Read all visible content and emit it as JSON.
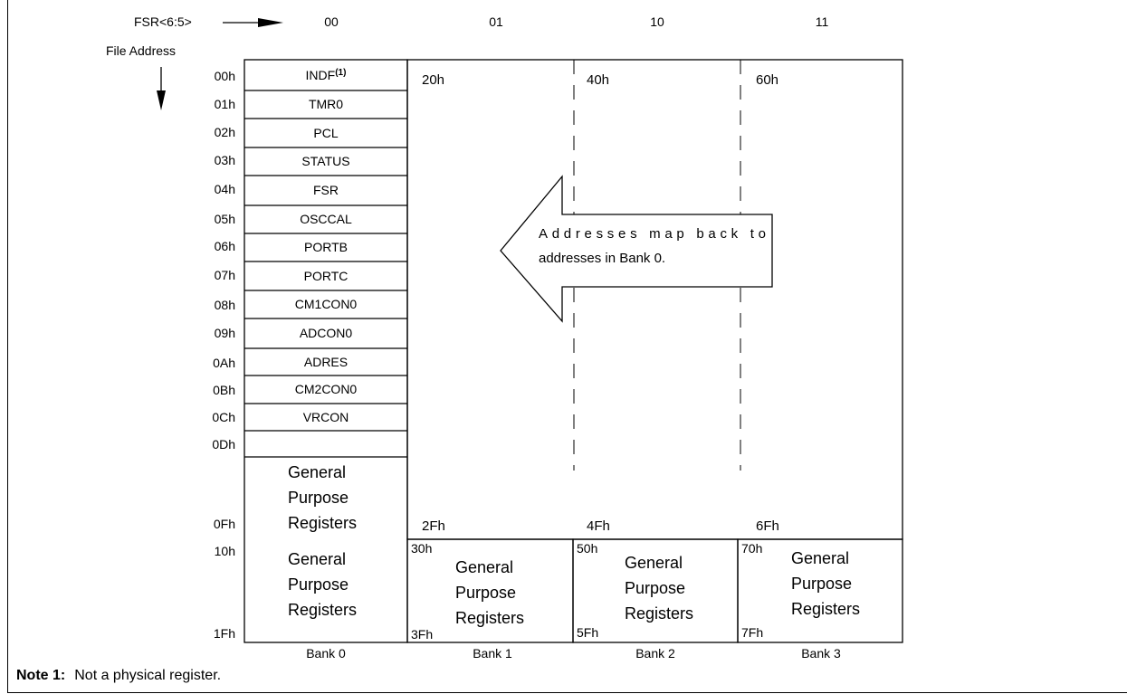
{
  "header": {
    "fsr_label": "FSR<6:5>",
    "file_address_label": "File Address",
    "bank_select": [
      "00",
      "01",
      "10",
      "11"
    ]
  },
  "bank0": {
    "registers": [
      {
        "addr": "00h",
        "name": "INDF",
        "sup": "(1)"
      },
      {
        "addr": "01h",
        "name": "TMR0"
      },
      {
        "addr": "02h",
        "name": "PCL"
      },
      {
        "addr": "03h",
        "name": "STATUS"
      },
      {
        "addr": "04h",
        "name": "FSR"
      },
      {
        "addr": "05h",
        "name": "OSCCAL"
      },
      {
        "addr": "06h",
        "name": "PORTB"
      },
      {
        "addr": "07h",
        "name": "PORTC"
      },
      {
        "addr": "08h",
        "name": "CM1CON0"
      },
      {
        "addr": "09h",
        "name": "ADCON0"
      },
      {
        "addr": "0Ah",
        "name": "ADRES"
      },
      {
        "addr": "0Bh",
        "name": "CM2CON0"
      },
      {
        "addr": "0Ch",
        "name": "VRCON"
      }
    ],
    "gpr_upper": {
      "start": "0Dh",
      "end": "0Fh",
      "lines": [
        "General",
        "Purpose",
        "Registers"
      ]
    },
    "gpr_lower": {
      "start": "10h",
      "end": "1Fh",
      "lines": [
        "General",
        "Purpose",
        "Registers"
      ]
    }
  },
  "mapped_region": {
    "start_labels": [
      "20h",
      "40h",
      "60h"
    ],
    "end_labels": [
      "2Fh",
      "4Fh",
      "6Fh"
    ],
    "callout_lines": [
      "Addresses map back to",
      "addresses in Bank 0."
    ]
  },
  "upper_banks": [
    {
      "start": "30h",
      "end": "3Fh",
      "lines": [
        "General",
        "Purpose",
        "Registers"
      ]
    },
    {
      "start": "50h",
      "end": "5Fh",
      "lines": [
        "General",
        "Purpose",
        "Registers"
      ]
    },
    {
      "start": "70h",
      "end": "7Fh",
      "lines": [
        "General",
        "Purpose",
        "Registers"
      ]
    }
  ],
  "bank_labels": [
    "Bank 0",
    "Bank 1",
    "Bank 2",
    "Bank 3"
  ],
  "note": {
    "label": "Note 1:",
    "text": "Not a physical register."
  }
}
